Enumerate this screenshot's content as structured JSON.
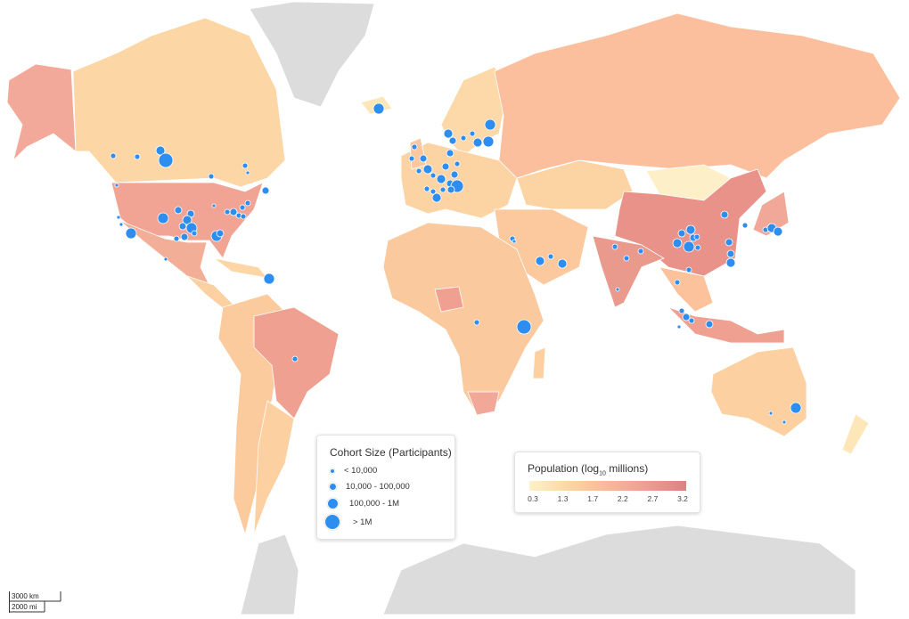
{
  "cohort_legend": {
    "title": "Cohort Size (Participants)",
    "items": [
      "< 10,000",
      "10,000 - 100,000",
      "100,000 - 1M",
      "> 1M"
    ]
  },
  "population_legend": {
    "title_prefix": "Population (log",
    "title_sub": "10",
    "title_suffix": " millions)",
    "ticks": [
      0.3,
      1.3,
      1.7,
      2.2,
      2.7,
      3.2
    ]
  },
  "scale_bar": {
    "km": "3000 km",
    "mi": "2000 mi"
  }
}
